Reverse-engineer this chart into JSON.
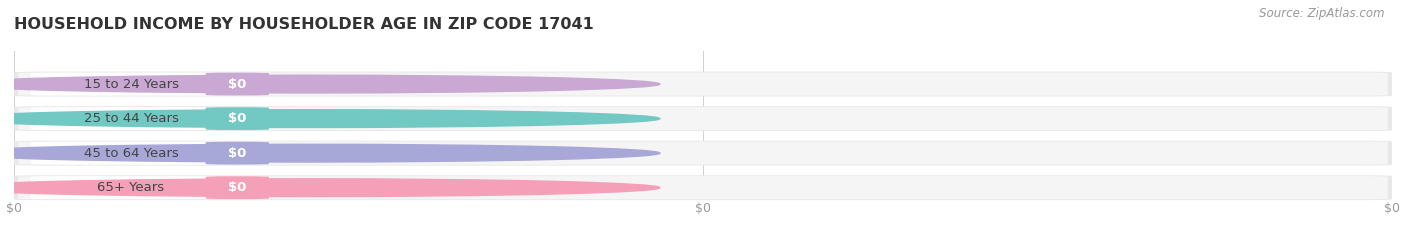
{
  "title": "HOUSEHOLD INCOME BY HOUSEHOLDER AGE IN ZIP CODE 17041",
  "source_text": "Source: ZipAtlas.com",
  "categories": [
    "15 to 24 Years",
    "25 to 44 Years",
    "45 to 64 Years",
    "65+ Years"
  ],
  "values": [
    0,
    0,
    0,
    0
  ],
  "bar_colors": [
    "#c9a8d4",
    "#72c8c2",
    "#a8a8d8",
    "#f4a0b8"
  ],
  "bar_track_color": "#e8e8e8",
  "bar_inner_color": "#f5f5f5",
  "white_pill_color": "#ffffff",
  "background_color": "#ffffff",
  "title_fontsize": 11.5,
  "source_fontsize": 8.5,
  "tick_label_fontsize": 9,
  "cat_label_fontsize": 9.5,
  "value_label": "$0",
  "tick_labels": [
    "$0",
    "$0",
    "$0"
  ]
}
